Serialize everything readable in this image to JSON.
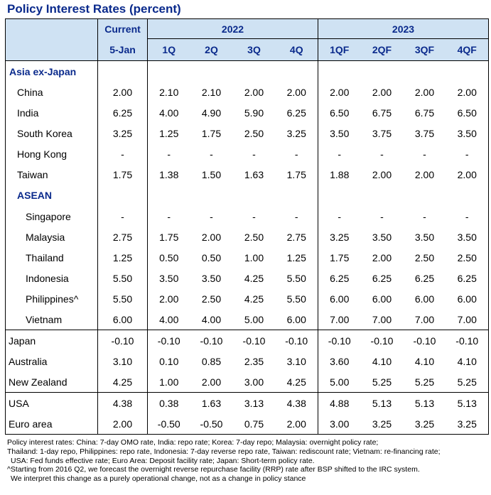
{
  "title": "Policy Interest Rates (percent)",
  "header": {
    "current": "Current",
    "year_2022": "2022",
    "year_2023": "2023",
    "current_date": "5-Jan",
    "quarters_2022": [
      "1Q",
      "2Q",
      "3Q",
      "4Q"
    ],
    "quarters_2023": [
      "1QF",
      "2QF",
      "3QF",
      "4QF"
    ]
  },
  "sections": {
    "asia": "Asia ex-Japan",
    "asean": "ASEAN"
  },
  "rows": {
    "china": {
      "name": "China",
      "v": [
        "2.00",
        "2.10",
        "2.10",
        "2.00",
        "2.00",
        "2.00",
        "2.00",
        "2.00",
        "2.00"
      ]
    },
    "india": {
      "name": "India",
      "v": [
        "6.25",
        "4.00",
        "4.90",
        "5.90",
        "6.25",
        "6.50",
        "6.75",
        "6.75",
        "6.50"
      ]
    },
    "south_korea": {
      "name": "South Korea",
      "v": [
        "3.25",
        "1.25",
        "1.75",
        "2.50",
        "3.25",
        "3.50",
        "3.75",
        "3.75",
        "3.50"
      ]
    },
    "hong_kong": {
      "name": "Hong Kong",
      "v": [
        "-",
        "-",
        "-",
        "-",
        "-",
        "-",
        "-",
        "-",
        "-"
      ]
    },
    "taiwan": {
      "name": "Taiwan",
      "v": [
        "1.75",
        "1.38",
        "1.50",
        "1.63",
        "1.75",
        "1.88",
        "2.00",
        "2.00",
        "2.00"
      ]
    },
    "singapore": {
      "name": "Singapore",
      "v": [
        "-",
        "-",
        "-",
        "-",
        "-",
        "-",
        "-",
        "-",
        "-"
      ]
    },
    "malaysia": {
      "name": "Malaysia",
      "v": [
        "2.75",
        "1.75",
        "2.00",
        "2.50",
        "2.75",
        "3.25",
        "3.50",
        "3.50",
        "3.50"
      ]
    },
    "thailand": {
      "name": "Thailand",
      "v": [
        "1.25",
        "0.50",
        "0.50",
        "1.00",
        "1.25",
        "1.75",
        "2.00",
        "2.50",
        "2.50"
      ]
    },
    "indonesia": {
      "name": "Indonesia",
      "v": [
        "5.50",
        "3.50",
        "3.50",
        "4.25",
        "5.50",
        "6.25",
        "6.25",
        "6.25",
        "6.25"
      ]
    },
    "philippines": {
      "name": "Philippines^",
      "v": [
        "5.50",
        "2.00",
        "2.50",
        "4.25",
        "5.50",
        "6.00",
        "6.00",
        "6.00",
        "6.00"
      ]
    },
    "vietnam": {
      "name": "Vietnam",
      "v": [
        "6.00",
        "4.00",
        "4.00",
        "5.00",
        "6.00",
        "7.00",
        "7.00",
        "7.00",
        "7.00"
      ]
    },
    "japan": {
      "name": "Japan",
      "v": [
        "-0.10",
        "-0.10",
        "-0.10",
        "-0.10",
        "-0.10",
        "-0.10",
        "-0.10",
        "-0.10",
        "-0.10"
      ]
    },
    "australia": {
      "name": "Australia",
      "v": [
        "3.10",
        "0.10",
        "0.85",
        "2.35",
        "3.10",
        "3.60",
        "4.10",
        "4.10",
        "4.10"
      ]
    },
    "new_zealand": {
      "name": "New Zealand",
      "v": [
        "4.25",
        "1.00",
        "2.00",
        "3.00",
        "4.25",
        "5.00",
        "5.25",
        "5.25",
        "5.25"
      ]
    },
    "usa": {
      "name": "USA",
      "v": [
        "4.38",
        "0.38",
        "1.63",
        "3.13",
        "4.38",
        "4.88",
        "5.13",
        "5.13",
        "5.13"
      ]
    },
    "euro_area": {
      "name": "Euro area",
      "v": [
        "2.00",
        "-0.50",
        "-0.50",
        "0.75",
        "2.00",
        "3.00",
        "3.25",
        "3.25",
        "3.25"
      ]
    }
  },
  "footnotes": [
    "Policy interest rates: China: 7-day OMO rate, India: repo rate; Korea: 7-day repo; Malaysia: overnight policy rate;",
    "Thailand: 1-day repo, Philippines: repo rate, Indonesia: 7-day reverse repo rate, Taiwan: rediscount rate; Vietnam: re-financing rate;",
    " USA: Fed funds effective rate; Euro Area: Deposit facility rate; Japan: Short-term policy rate.",
    "^Starting from 2016 Q2, we forecast the overnight reverse repurchase facility (RRP) rate after BSP shifted to the IRC system.",
    "We interpret this change as a purely operational change, not as a change in policy stance"
  ]
}
